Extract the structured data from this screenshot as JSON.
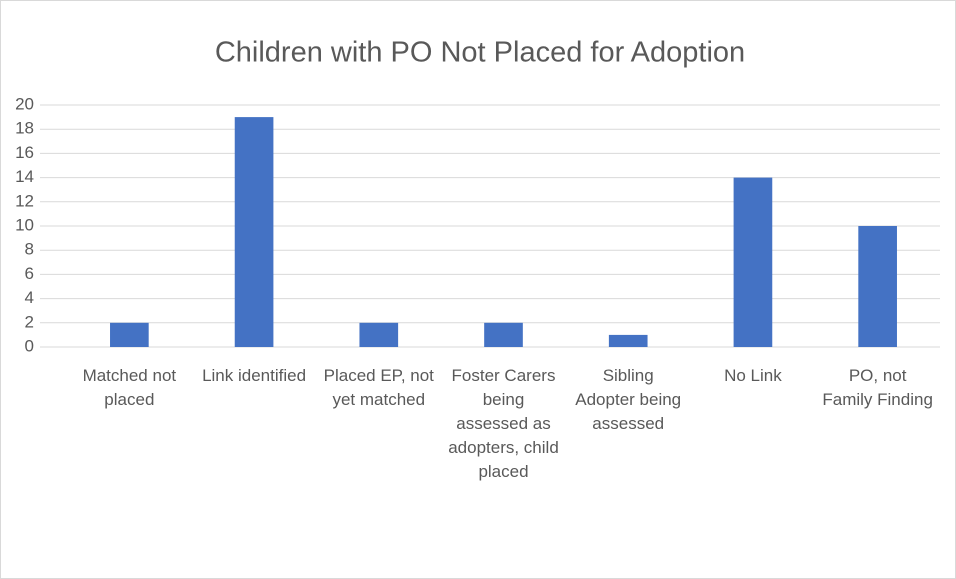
{
  "chart_data": {
    "type": "bar",
    "title": "Children with PO Not Placed for Adoption",
    "categories": [
      "Matched not placed",
      "Link identified",
      "Placed EP, not yet matched",
      "Foster Carers being assessed as adopters, child placed",
      "Sibling Adopter being assessed",
      "No Link",
      "PO, not Family Finding"
    ],
    "values": [
      2,
      19,
      2,
      2,
      1,
      14,
      10
    ],
    "color": "#4472c4",
    "ylim": [
      0,
      20
    ],
    "yticks": [
      0,
      2,
      4,
      6,
      8,
      10,
      12,
      14,
      16,
      18,
      20
    ],
    "grid": true
  }
}
